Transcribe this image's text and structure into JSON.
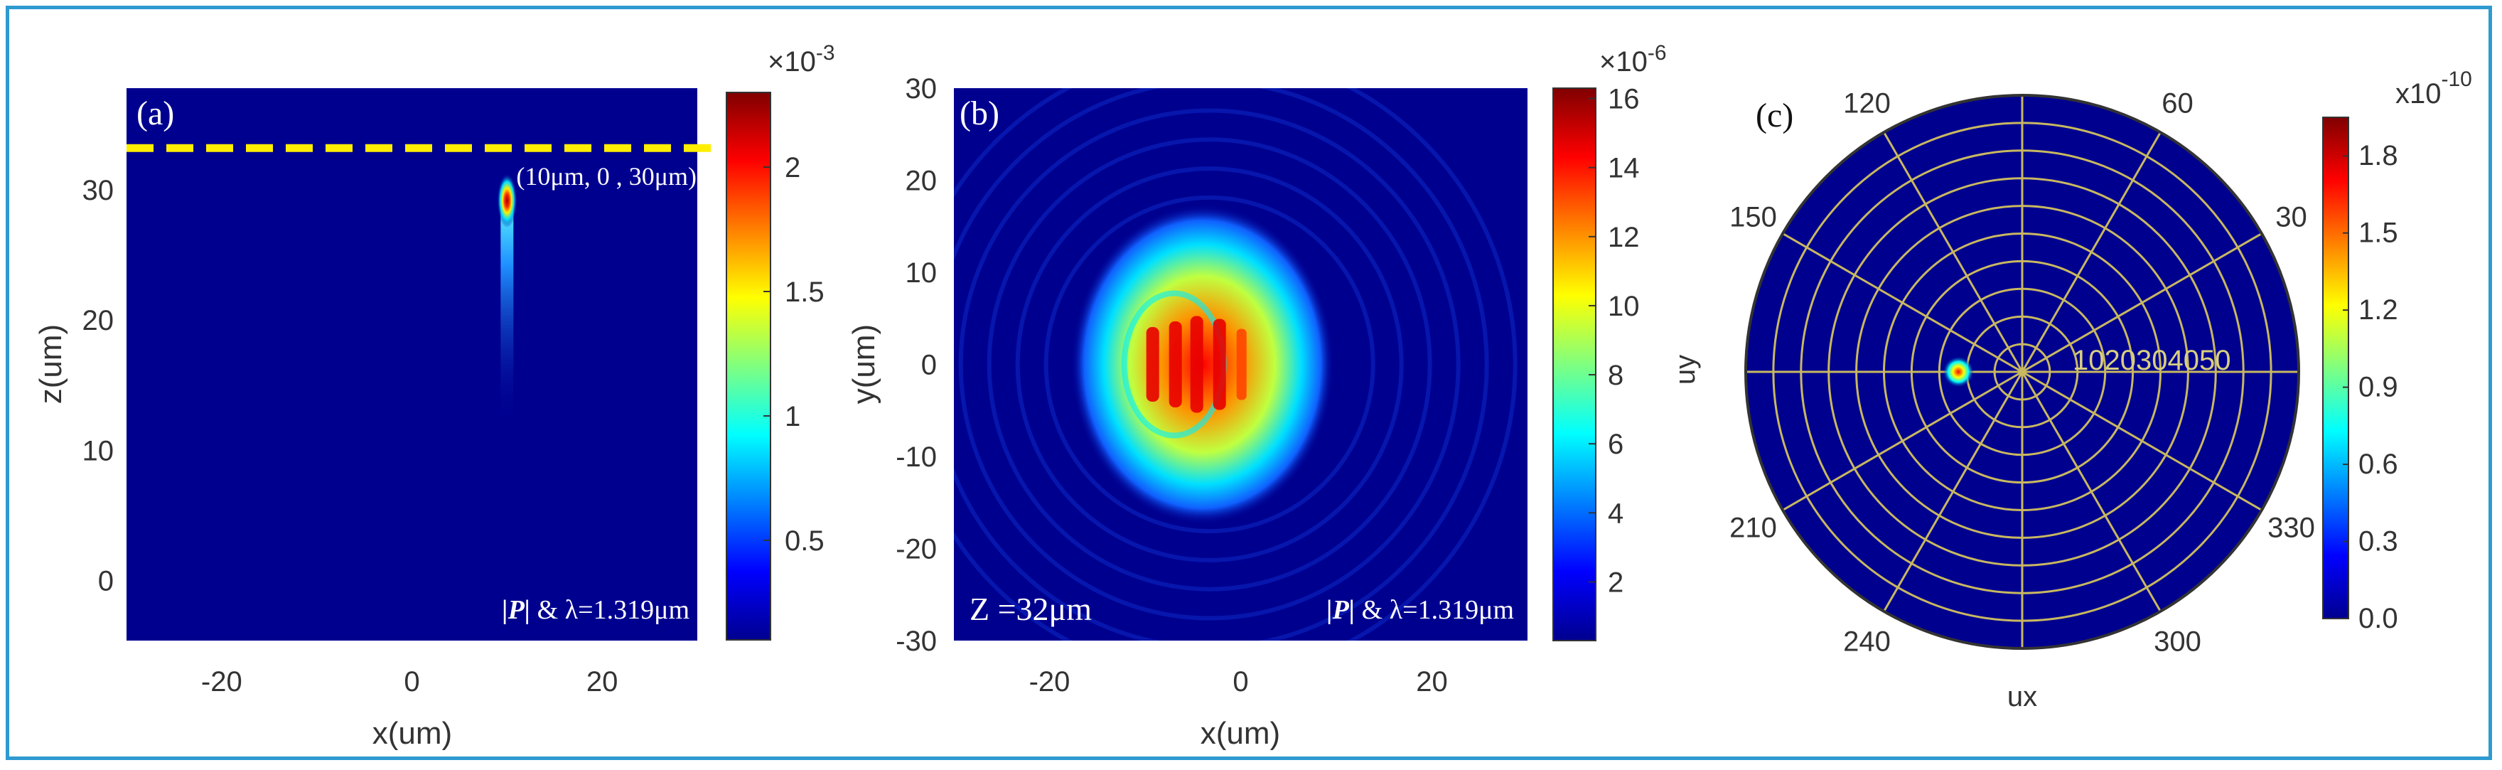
{
  "chart_data": [
    {
      "type": "heatmap",
      "panel_label": "(a)",
      "xlabel": "x(um)",
      "ylabel": "z(um)",
      "xlim": [
        -30,
        30
      ],
      "ylim": [
        -4.6,
        37.8
      ],
      "x_ticks": [
        "-20",
        "0",
        "20"
      ],
      "y_ticks": [
        "0",
        "10",
        "20",
        "30"
      ],
      "colorbar": {
        "multiplier": "×10",
        "exponent": "-3",
        "ticks": [
          "0.5",
          "1",
          "1.5",
          "2"
        ],
        "range": [
          0.0001,
          0.0023
        ]
      },
      "annotations": {
        "point": "(10μm, 0 , 30μm)",
        "legend_P": "|P|",
        "legend_rest": " & λ=1.319μm"
      },
      "marker_line_z": 33.2,
      "hotspot": {
        "x": 10,
        "z": 29.5
      }
    },
    {
      "type": "heatmap",
      "panel_label": "(b)",
      "xlabel": "x(um)",
      "ylabel": "y(um)",
      "xlim": [
        -30,
        30
      ],
      "ylim": [
        -30,
        30
      ],
      "x_ticks": [
        "-20",
        "0",
        "20"
      ],
      "y_ticks": [
        "30",
        "20",
        "10",
        "0",
        "-10",
        "-20",
        "-30"
      ],
      "colorbar": {
        "multiplier": "×10",
        "exponent": "-6",
        "ticks": [
          "2",
          "4",
          "6",
          "8",
          "10",
          "12",
          "14",
          "16"
        ],
        "range": [
          0.3,
          16.3
        ]
      },
      "annotations": {
        "plane": "Z =32μm",
        "legend_P": "|P|",
        "legend_rest": " & λ=1.319μm"
      },
      "spot_center": {
        "x": -4,
        "y": 0
      }
    },
    {
      "type": "heatmap",
      "subtype": "polar",
      "panel_label": "(c)",
      "xlabel": "ux",
      "ylabel": "uy",
      "angle_labels": [
        "30",
        "60",
        "120",
        "150",
        "210",
        "240",
        "300",
        "330"
      ],
      "radial_labels": "1020304050",
      "colorbar": {
        "multiplier": "x10",
        "exponent": "-10",
        "ticks": [
          "0.0",
          "0.3",
          "0.6",
          "0.9",
          "1.2",
          "1.5",
          "1.8"
        ],
        "range": [
          0.0,
          1.95
        ]
      },
      "hotspot": {
        "angle_deg": 180,
        "radius": 33
      }
    }
  ]
}
